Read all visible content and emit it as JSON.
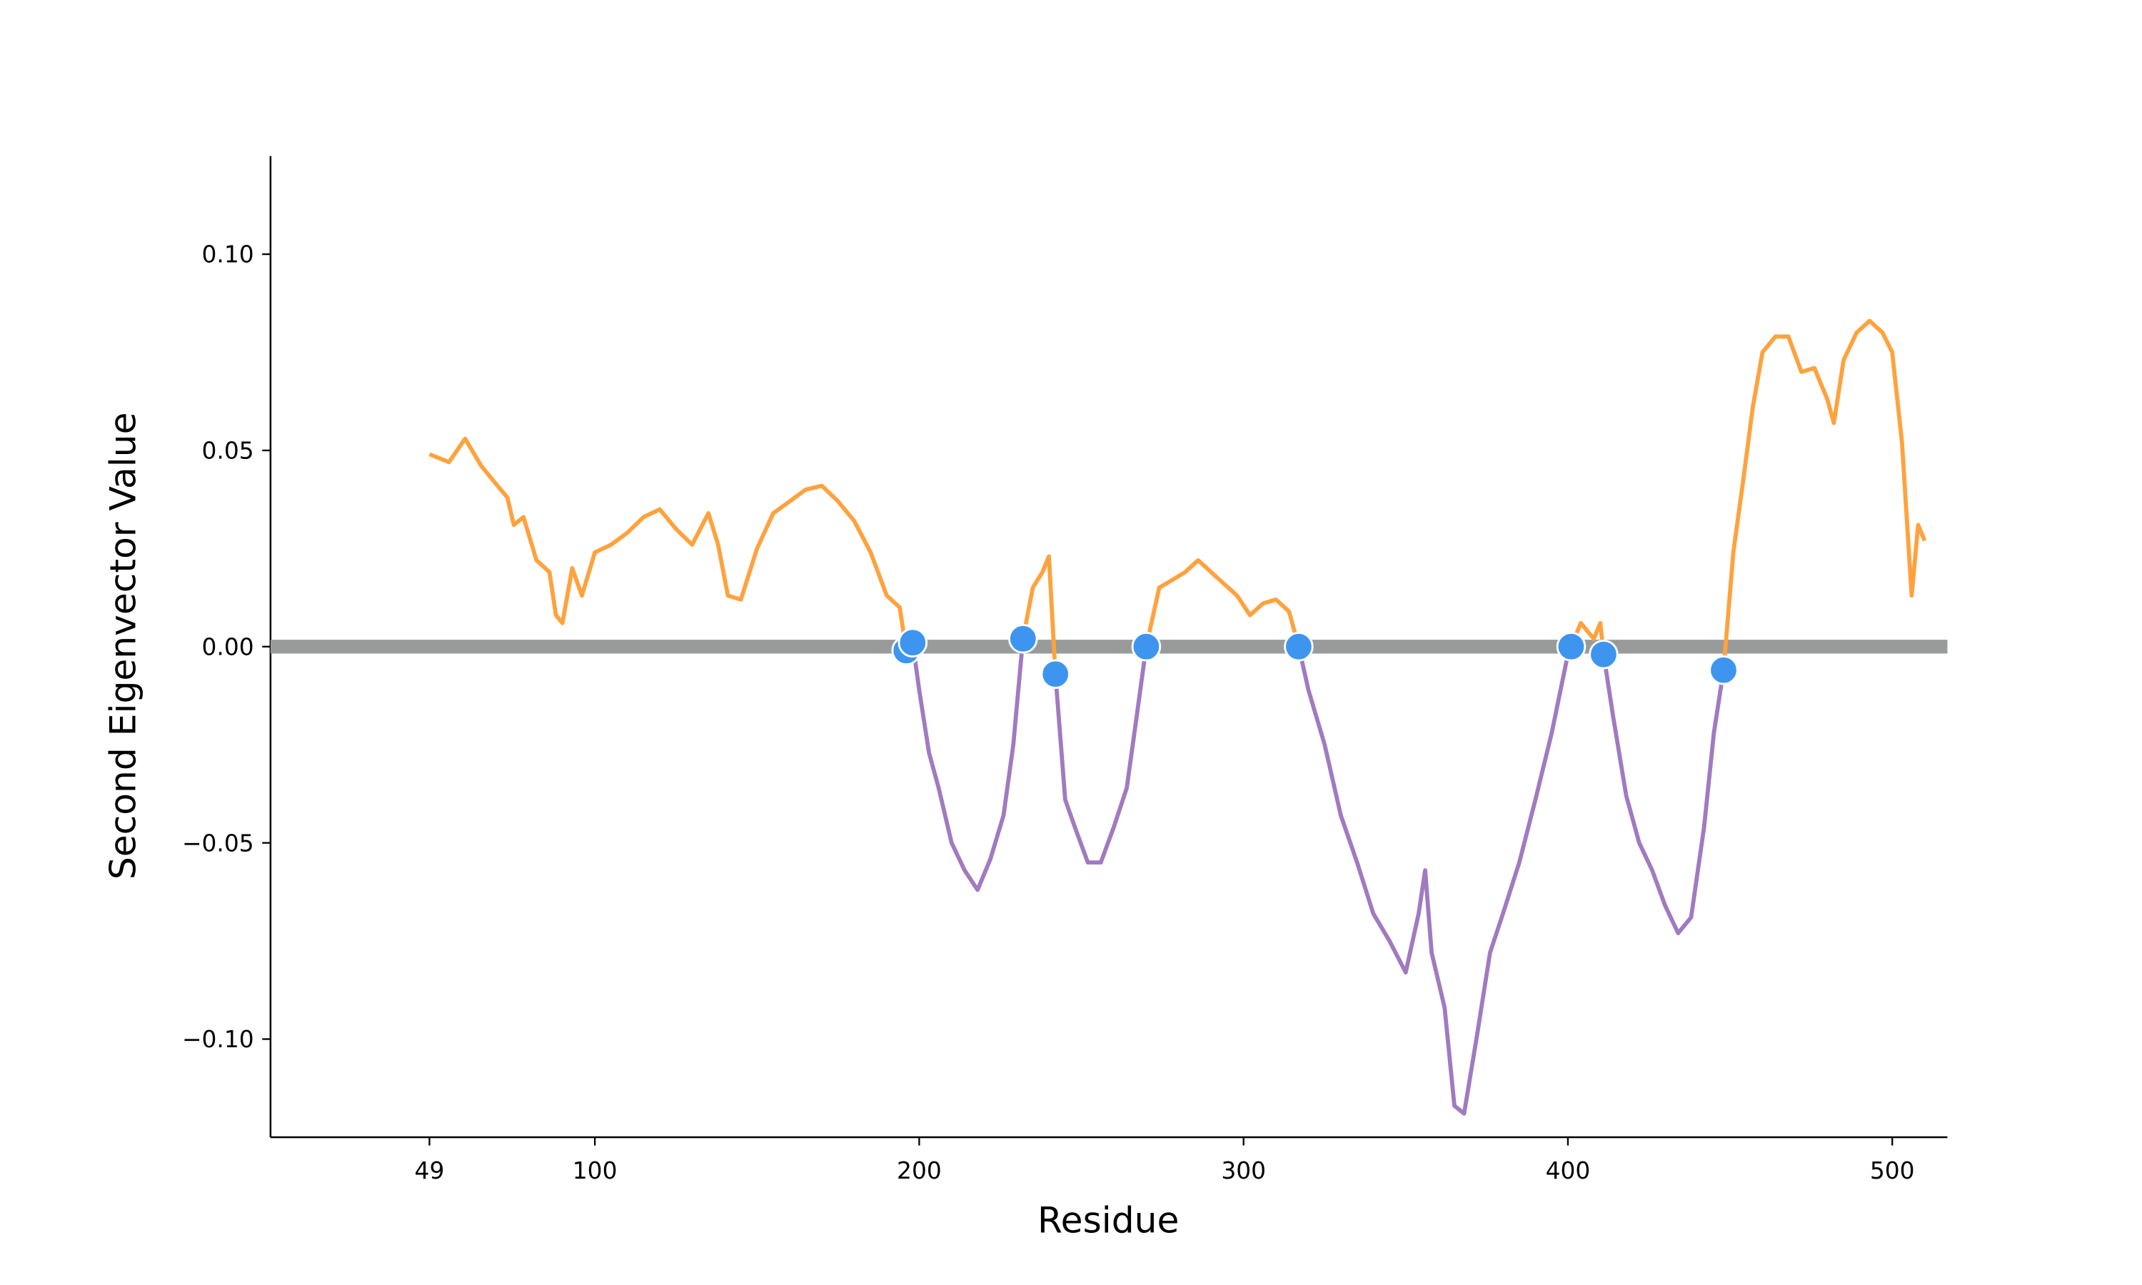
{
  "chart_data": {
    "type": "line",
    "xlabel": "Residue",
    "ylabel": "Second Eigenvector Value",
    "x": [
      49,
      55,
      60,
      65,
      70,
      73,
      75,
      78,
      82,
      86,
      88,
      90,
      93,
      96,
      100,
      105,
      110,
      115,
      120,
      125,
      130,
      135,
      138,
      141,
      145,
      150,
      155,
      160,
      165,
      170,
      175,
      180,
      185,
      190,
      194,
      196,
      198,
      200,
      203,
      206,
      210,
      214,
      218,
      222,
      226,
      229,
      232,
      235,
      238,
      240,
      242,
      245,
      248,
      252,
      256,
      260,
      264,
      267,
      270,
      274,
      278,
      282,
      286,
      290,
      294,
      298,
      302,
      306,
      310,
      314,
      317,
      320,
      325,
      330,
      335,
      340,
      345,
      350,
      354,
      356,
      358,
      362,
      365,
      368,
      372,
      376,
      380,
      385,
      390,
      395,
      400,
      401,
      404,
      408,
      410,
      411,
      414,
      418,
      422,
      426,
      430,
      434,
      438,
      442,
      445,
      448,
      451,
      454,
      457,
      460,
      464,
      468,
      472,
      476,
      480,
      482,
      485,
      489,
      493,
      497,
      500,
      503,
      506,
      508,
      510
    ],
    "values": [
      0.049,
      0.047,
      0.053,
      0.046,
      0.041,
      0.038,
      0.031,
      0.033,
      0.022,
      0.019,
      0.008,
      0.006,
      0.02,
      0.013,
      0.024,
      0.026,
      0.029,
      0.033,
      0.035,
      0.03,
      0.026,
      0.034,
      0.026,
      0.013,
      0.012,
      0.025,
      0.034,
      0.037,
      0.04,
      0.041,
      0.037,
      0.032,
      0.024,
      0.013,
      0.01,
      -0.001,
      0.001,
      -0.011,
      -0.027,
      -0.036,
      -0.05,
      -0.057,
      -0.062,
      -0.054,
      -0.043,
      -0.025,
      0.002,
      0.015,
      0.019,
      0.023,
      -0.007,
      -0.039,
      -0.046,
      -0.055,
      -0.055,
      -0.046,
      -0.036,
      -0.018,
      0.0,
      0.015,
      0.017,
      0.019,
      0.022,
      0.019,
      0.016,
      0.013,
      0.008,
      0.011,
      0.012,
      0.009,
      0.0,
      -0.011,
      -0.025,
      -0.043,
      -0.055,
      -0.068,
      -0.075,
      -0.083,
      -0.068,
      -0.057,
      -0.078,
      -0.092,
      -0.117,
      -0.119,
      -0.099,
      -0.078,
      -0.068,
      -0.055,
      -0.039,
      -0.022,
      -0.002,
      0.0,
      0.006,
      0.002,
      0.006,
      -0.002,
      -0.018,
      -0.038,
      -0.05,
      -0.057,
      -0.066,
      -0.073,
      -0.069,
      -0.046,
      -0.022,
      -0.006,
      0.024,
      0.042,
      0.061,
      0.075,
      0.079,
      0.079,
      0.07,
      0.071,
      0.063,
      0.057,
      0.073,
      0.08,
      0.083,
      0.08,
      0.075,
      0.052,
      0.013,
      0.031,
      0.027
    ],
    "color_positive": "#ffa23e",
    "color_negative": "#a17ac0",
    "reference_line": {
      "value": 0,
      "color": "#999b9b"
    },
    "markers": {
      "x": [
        196,
        198,
        232,
        242,
        270,
        317,
        401,
        411,
        448
      ],
      "values": [
        -0.001,
        0.001,
        0.002,
        -0.007,
        0.0,
        0.0,
        0.0,
        -0.002,
        -0.006
      ],
      "color": "#3d95f0"
    },
    "xlim": [
      0,
      517
    ],
    "ylim": [
      -0.125,
      0.125
    ],
    "xticks": [
      49,
      100,
      200,
      300,
      400,
      500
    ],
    "yticks": [
      {
        "value": -0.1,
        "label": "−0.10"
      },
      {
        "value": -0.05,
        "label": "−0.05"
      },
      {
        "value": 0,
        "label": "0.00"
      },
      {
        "value": 0.05,
        "label": "0.05"
      },
      {
        "value": 0.1,
        "label": "0.10"
      }
    ]
  }
}
